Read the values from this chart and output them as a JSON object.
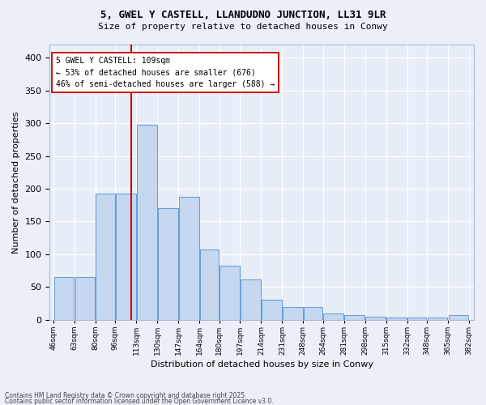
{
  "title1": "5, GWEL Y CASTELL, LLANDUDNO JUNCTION, LL31 9LR",
  "title2": "Size of property relative to detached houses in Conwy",
  "xlabel": "Distribution of detached houses by size in Conwy",
  "ylabel": "Number of detached properties",
  "categories": [
    "46sqm",
    "63sqm",
    "80sqm",
    "96sqm",
    "113sqm",
    "130sqm",
    "147sqm",
    "164sqm",
    "180sqm",
    "197sqm",
    "214sqm",
    "231sqm",
    "248sqm",
    "264sqm",
    "281sqm",
    "298sqm",
    "315sqm",
    "332sqm",
    "348sqm",
    "365sqm",
    "382sqm"
  ],
  "bar_heights": [
    65,
    65,
    192,
    192,
    298,
    170,
    188,
    107,
    82,
    62,
    31,
    20,
    20,
    10,
    7,
    5,
    4,
    3,
    3,
    7
  ],
  "bar_color": "#c5d8f0",
  "bar_edge_color": "#6a9fd8",
  "bg_color": "#e8eef8",
  "fig_bg": "#eaeff8",
  "grid_color": "#ffffff",
  "vline_x": 109,
  "vline_color": "#cc0000",
  "annotation_text": "5 GWEL Y CASTELL: 109sqm\n← 53% of detached houses are smaller (676)\n46% of semi-detached houses are larger (588) →",
  "footer1": "Contains HM Land Registry data © Crown copyright and database right 2025.",
  "footer2": "Contains public sector information licensed under the Open Government Licence v3.0.",
  "ylim": [
    0,
    420
  ],
  "bin_edges": [
    46,
    63,
    80,
    96,
    113,
    130,
    147,
    164,
    180,
    197,
    214,
    231,
    248,
    264,
    281,
    298,
    315,
    332,
    348,
    365,
    382
  ]
}
